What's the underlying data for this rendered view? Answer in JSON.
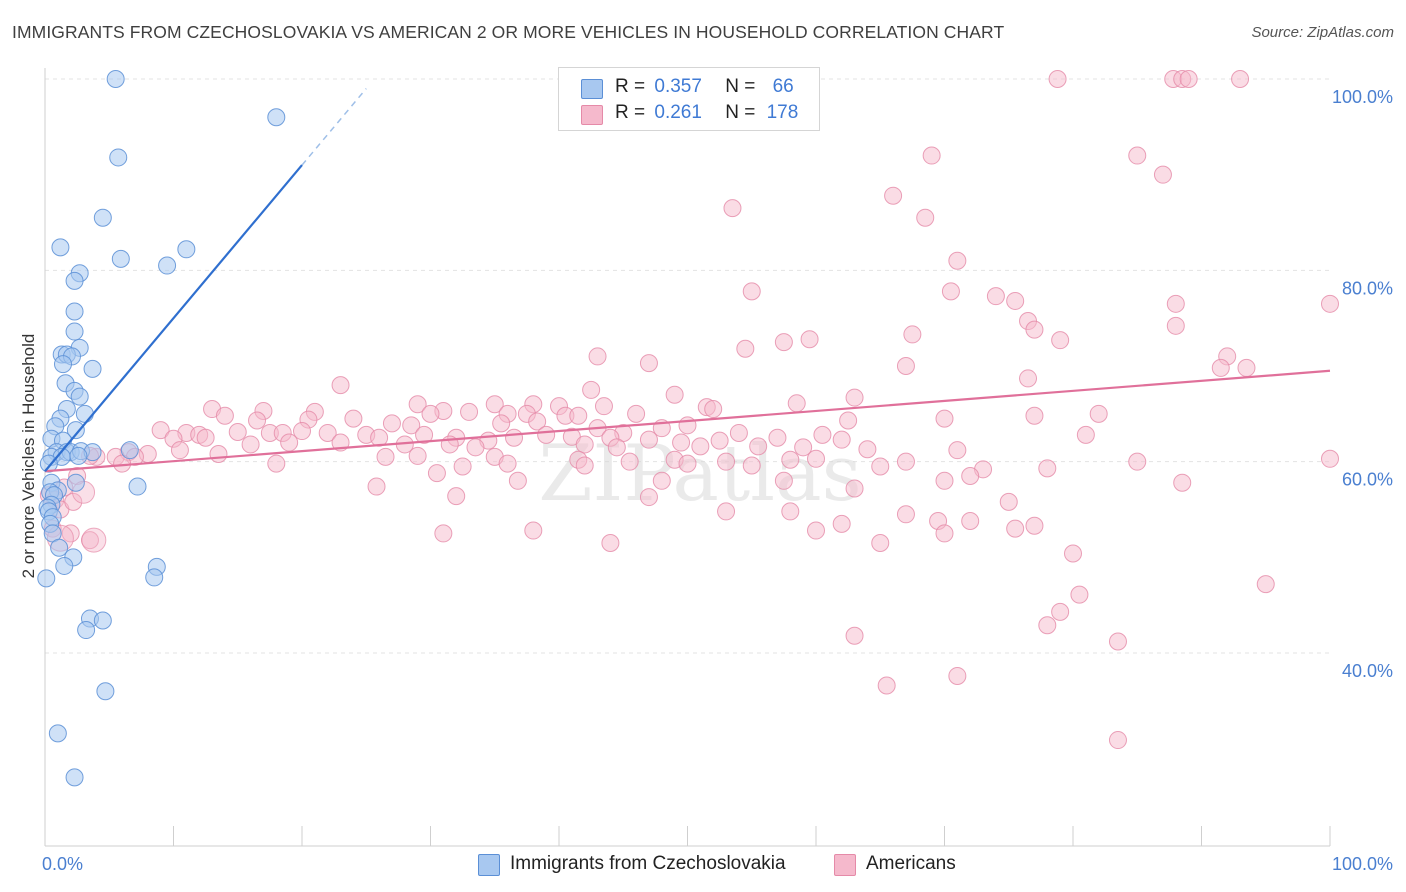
{
  "title": "IMMIGRANTS FROM CZECHOSLOVAKIA VS AMERICAN 2 OR MORE VEHICLES IN HOUSEHOLD CORRELATION CHART",
  "source": "Source: ZipAtlas.com",
  "watermark": "ZIPatlas",
  "legend": {
    "blue": {
      "r_label": "R =",
      "r_value": "0.357",
      "n_label": "N =",
      "n_value": "66"
    },
    "pink": {
      "r_label": "R =",
      "r_value": "0.261",
      "n_label": "N =",
      "n_value": "178"
    }
  },
  "bottom_legend": {
    "blue_label": "Immigrants from Czechoslovakia",
    "pink_label": "Americans"
  },
  "colors": {
    "blue_fill": "#a8c8f0",
    "blue_stroke": "#5b8fd6",
    "blue_line": "#2f6fcf",
    "pink_fill": "#f5b9cc",
    "pink_stroke": "#e58aa8",
    "pink_line": "#e0709a",
    "grid": "#e3e3e3",
    "axis_text": "#4a7fd0"
  },
  "chart_data": {
    "type": "scatter",
    "title": "IMMIGRANTS FROM CZECHOSLOVAKIA VS AMERICAN 2 OR MORE VEHICLES IN HOUSEHOLD CORRELATION CHART",
    "xlabel": "",
    "ylabel": "2 or more Vehicles in Household",
    "xlim": [
      0,
      100
    ],
    "ylim": [
      20,
      102
    ],
    "x_tick_labels": [
      "0.0%",
      "100.0%"
    ],
    "y_tick_labels": [
      "40.0%",
      "60.0%",
      "80.0%",
      "100.0%"
    ],
    "y_ticks": [
      40,
      60,
      80,
      100
    ],
    "grid": true,
    "legend_position": "top-center",
    "series": [
      {
        "name": "Immigrants from Czechoslovakia",
        "color": "#a8c8f0",
        "r": 0.357,
        "n": 66,
        "trend": {
          "x0": 0,
          "y0": 59.0,
          "x1": 20,
          "y1": 91.0,
          "dashed_to_x": 25,
          "dashed_to_y": 99.0
        },
        "points": [
          [
            5.5,
            100.0
          ],
          [
            18.0,
            96.0
          ],
          [
            5.7,
            91.8
          ],
          [
            4.5,
            85.5
          ],
          [
            1.2,
            82.4
          ],
          [
            5.9,
            81.2
          ],
          [
            11.0,
            82.2
          ],
          [
            9.5,
            80.5
          ],
          [
            2.7,
            79.7
          ],
          [
            2.3,
            78.9
          ],
          [
            2.3,
            75.7
          ],
          [
            2.3,
            73.6
          ],
          [
            2.7,
            71.9
          ],
          [
            1.3,
            71.2
          ],
          [
            1.7,
            71.2
          ],
          [
            2.1,
            71.0
          ],
          [
            1.4,
            70.2
          ],
          [
            3.7,
            69.7
          ],
          [
            1.6,
            68.2
          ],
          [
            2.3,
            67.4
          ],
          [
            2.7,
            66.8
          ],
          [
            1.7,
            65.5
          ],
          [
            3.1,
            65.0
          ],
          [
            1.2,
            64.5
          ],
          [
            0.8,
            63.7
          ],
          [
            2.4,
            63.3
          ],
          [
            0.5,
            62.4
          ],
          [
            1.4,
            62.2
          ],
          [
            0.9,
            61.0
          ],
          [
            1.7,
            61.0
          ],
          [
            2.0,
            61.0
          ],
          [
            2.8,
            61.1
          ],
          [
            3.7,
            61.0
          ],
          [
            0.5,
            60.5
          ],
          [
            1.3,
            60.5
          ],
          [
            2.6,
            60.6
          ],
          [
            0.3,
            59.8
          ],
          [
            0.5,
            57.8
          ],
          [
            1.0,
            57.0
          ],
          [
            2.4,
            57.8
          ],
          [
            0.4,
            56.8
          ],
          [
            0.7,
            56.5
          ],
          [
            0.5,
            55.5
          ],
          [
            0.2,
            55.2
          ],
          [
            0.3,
            54.8
          ],
          [
            0.6,
            54.2
          ],
          [
            0.4,
            53.5
          ],
          [
            0.6,
            52.5
          ],
          [
            7.2,
            57.4
          ],
          [
            6.6,
            61.2
          ],
          [
            1.1,
            51.0
          ],
          [
            2.2,
            50.0
          ],
          [
            1.5,
            49.1
          ],
          [
            8.7,
            49.0
          ],
          [
            8.5,
            47.9
          ],
          [
            0.1,
            47.8
          ],
          [
            3.5,
            43.6
          ],
          [
            4.5,
            43.4
          ],
          [
            3.2,
            42.4
          ],
          [
            4.7,
            36.0
          ],
          [
            1.0,
            31.6
          ],
          [
            2.3,
            27.0
          ]
        ]
      },
      {
        "name": "Americans",
        "color": "#f5b9cc",
        "r": 0.261,
        "n": 178,
        "trend": {
          "x0": 0,
          "y0": 59.0,
          "x1": 100,
          "y1": 69.5
        },
        "points": [
          [
            78.8,
            100.0
          ],
          [
            87.8,
            100.0
          ],
          [
            88.5,
            100.0
          ],
          [
            89.0,
            100.0
          ],
          [
            93.0,
            100.0
          ],
          [
            69.0,
            92.0
          ],
          [
            85.0,
            92.0
          ],
          [
            87.0,
            90.0
          ],
          [
            66.0,
            87.8
          ],
          [
            68.5,
            85.5
          ],
          [
            53.5,
            86.5
          ],
          [
            71.0,
            81.0
          ],
          [
            55.0,
            77.8
          ],
          [
            70.5,
            77.8
          ],
          [
            74.0,
            77.3
          ],
          [
            75.5,
            76.8
          ],
          [
            88.0,
            76.5
          ],
          [
            100.0,
            76.5
          ],
          [
            76.5,
            74.7
          ],
          [
            77.0,
            73.8
          ],
          [
            88.0,
            74.2
          ],
          [
            67.5,
            73.3
          ],
          [
            59.5,
            72.8
          ],
          [
            57.5,
            72.5
          ],
          [
            54.5,
            71.8
          ],
          [
            79.0,
            72.7
          ],
          [
            43.0,
            71.0
          ],
          [
            92.0,
            71.0
          ],
          [
            47.0,
            70.3
          ],
          [
            67.0,
            70.0
          ],
          [
            91.5,
            69.8
          ],
          [
            93.5,
            69.8
          ],
          [
            76.5,
            68.7
          ],
          [
            23.0,
            68.0
          ],
          [
            42.5,
            67.5
          ],
          [
            49.0,
            67.0
          ],
          [
            63.0,
            66.7
          ],
          [
            58.5,
            66.1
          ],
          [
            29.0,
            66.0
          ],
          [
            35.0,
            66.0
          ],
          [
            38.0,
            66.0
          ],
          [
            40.0,
            65.8
          ],
          [
            43.5,
            65.8
          ],
          [
            51.5,
            65.7
          ],
          [
            52.0,
            65.5
          ],
          [
            13.0,
            65.5
          ],
          [
            17.0,
            65.3
          ],
          [
            21.0,
            65.2
          ],
          [
            31.0,
            65.3
          ],
          [
            33.0,
            65.2
          ],
          [
            30.0,
            65.0
          ],
          [
            36.0,
            65.0
          ],
          [
            37.5,
            65.0
          ],
          [
            40.5,
            64.8
          ],
          [
            41.5,
            64.8
          ],
          [
            46.0,
            65.0
          ],
          [
            14.0,
            64.8
          ],
          [
            16.5,
            64.3
          ],
          [
            20.5,
            64.4
          ],
          [
            24.0,
            64.5
          ],
          [
            27.0,
            64.0
          ],
          [
            28.5,
            63.8
          ],
          [
            35.5,
            64.0
          ],
          [
            38.3,
            64.2
          ],
          [
            43.0,
            63.5
          ],
          [
            45.0,
            63.0
          ],
          [
            48.0,
            63.5
          ],
          [
            50.0,
            63.8
          ],
          [
            54.0,
            63.0
          ],
          [
            62.5,
            64.3
          ],
          [
            70.0,
            64.5
          ],
          [
            77.0,
            64.8
          ],
          [
            82.0,
            65.0
          ],
          [
            9.0,
            63.3
          ],
          [
            11.0,
            63.0
          ],
          [
            12.0,
            62.8
          ],
          [
            15.0,
            63.1
          ],
          [
            17.5,
            63.0
          ],
          [
            18.5,
            63.0
          ],
          [
            20.0,
            63.2
          ],
          [
            22.0,
            63.0
          ],
          [
            25.0,
            62.8
          ],
          [
            26.0,
            62.5
          ],
          [
            29.5,
            62.8
          ],
          [
            32.0,
            62.5
          ],
          [
            34.5,
            62.2
          ],
          [
            36.5,
            62.5
          ],
          [
            39.0,
            62.8
          ],
          [
            41.0,
            62.6
          ],
          [
            44.0,
            62.5
          ],
          [
            47.0,
            62.3
          ],
          [
            49.5,
            62.0
          ],
          [
            52.5,
            62.2
          ],
          [
            57.0,
            62.5
          ],
          [
            60.5,
            62.8
          ],
          [
            62.0,
            62.3
          ],
          [
            81.0,
            62.8
          ],
          [
            10.0,
            62.4
          ],
          [
            12.5,
            62.5
          ],
          [
            16.0,
            61.8
          ],
          [
            19.0,
            62.0
          ],
          [
            23.0,
            62.0
          ],
          [
            28.0,
            61.8
          ],
          [
            31.5,
            61.8
          ],
          [
            33.5,
            61.5
          ],
          [
            42.0,
            61.8
          ],
          [
            44.5,
            61.5
          ],
          [
            51.0,
            61.6
          ],
          [
            55.5,
            61.6
          ],
          [
            59.0,
            61.5
          ],
          [
            64.0,
            61.3
          ],
          [
            71.0,
            61.2
          ],
          [
            6.5,
            61.0
          ],
          [
            8.0,
            60.8
          ],
          [
            10.5,
            61.2
          ],
          [
            13.5,
            60.8
          ],
          [
            7.0,
            60.5
          ],
          [
            5.5,
            60.5
          ],
          [
            4.0,
            60.5
          ],
          [
            3.5,
            60.6
          ],
          [
            26.5,
            60.5
          ],
          [
            29.0,
            60.6
          ],
          [
            35.0,
            60.5
          ],
          [
            41.5,
            60.2
          ],
          [
            45.5,
            60.0
          ],
          [
            49.0,
            60.2
          ],
          [
            53.0,
            60.0
          ],
          [
            58.0,
            60.2
          ],
          [
            60.0,
            60.3
          ],
          [
            67.0,
            60.0
          ],
          [
            100.0,
            60.3
          ],
          [
            6.0,
            59.8
          ],
          [
            18.0,
            59.8
          ],
          [
            32.5,
            59.5
          ],
          [
            36.0,
            59.8
          ],
          [
            42.0,
            59.6
          ],
          [
            50.0,
            59.8
          ],
          [
            55.0,
            59.6
          ],
          [
            65.0,
            59.5
          ],
          [
            73.0,
            59.2
          ],
          [
            78.0,
            59.3
          ],
          [
            85.0,
            60.0
          ],
          [
            2.5,
            58.5
          ],
          [
            36.8,
            58.0
          ],
          [
            48.0,
            58.0
          ],
          [
            57.5,
            58.0
          ],
          [
            70.0,
            58.0
          ],
          [
            72.0,
            58.5
          ],
          [
            88.5,
            57.8
          ],
          [
            25.8,
            57.4
          ],
          [
            30.5,
            58.8
          ],
          [
            63.0,
            57.2
          ],
          [
            1.5,
            57.3
          ],
          [
            32.0,
            56.4
          ],
          [
            47.0,
            56.3
          ],
          [
            75.0,
            55.8
          ],
          [
            53.0,
            54.8
          ],
          [
            58.0,
            54.8
          ],
          [
            67.0,
            54.5
          ],
          [
            69.5,
            53.8
          ],
          [
            72.0,
            53.8
          ],
          [
            62.0,
            53.5
          ],
          [
            60.0,
            52.8
          ],
          [
            75.5,
            53.0
          ],
          [
            77.0,
            53.3
          ],
          [
            38.0,
            52.8
          ],
          [
            31.0,
            52.5
          ],
          [
            70.0,
            52.5
          ],
          [
            0.6,
            53.0
          ],
          [
            3.5,
            51.8
          ],
          [
            2.0,
            52.5
          ],
          [
            65.0,
            51.5
          ],
          [
            44.0,
            51.5
          ],
          [
            80.0,
            50.4
          ],
          [
            95.0,
            47.2
          ],
          [
            80.5,
            46.1
          ],
          [
            79.0,
            44.3
          ],
          [
            78.0,
            42.9
          ],
          [
            63.0,
            41.8
          ],
          [
            83.5,
            41.2
          ],
          [
            65.5,
            36.6
          ],
          [
            71.0,
            37.6
          ],
          [
            83.5,
            30.9
          ],
          [
            0.3,
            56.5
          ],
          [
            0.8,
            56.0
          ],
          [
            1.2,
            55.0
          ],
          [
            2.2,
            55.8
          ]
        ]
      }
    ]
  }
}
